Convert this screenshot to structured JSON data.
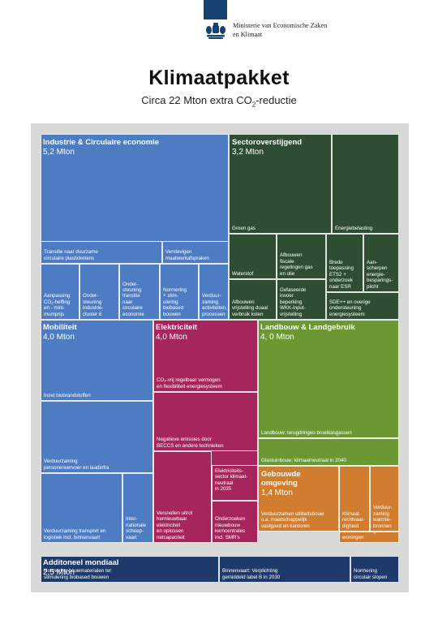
{
  "header": {
    "ministry_line1": "Ministerie van Economische Zaken",
    "ministry_line2": "en Klimaat",
    "logo_icon": "coat-of-arms-icon",
    "title": "Klimaatpakket",
    "subtitle_prefix": "Circa 22 Mton extra CO",
    "subtitle_sub": "2",
    "subtitle_suffix": "-reductie"
  },
  "colors": {
    "industrie": "#4D7CC3",
    "sectoroverstijgend": "#2E4D33",
    "mobiliteit": "#4D7CC3",
    "elektriciteit": "#A5255C",
    "landbouw": "#6B9833",
    "gebouwde_omgeving": "#D07D2F",
    "additioneel": "#1E3A6B",
    "background": "#D8D8D8"
  },
  "chart_data": {
    "type": "treemap",
    "title": "Klimaatpakket",
    "subtitle": "Circa 22 Mton extra CO2-reductie",
    "sectors": [
      {
        "id": "industrie",
        "name": "Industrie & Circulaire economie",
        "value": 5.2,
        "value_label": "5,2 Mton",
        "measures": [
          "Transitie naar duurzame circulaire plasticketens",
          "Verstevigen maatwerkafspraken",
          "Aanpassing CO₂-heffing en - mini-mumprijs",
          "Onder-steuning industrie-cluster 6",
          "Onder-steuning transitie naar circulaire economie",
          "Normering + stim-ulering biobased bouwen",
          "Verduur-zaming activiteiten, processen"
        ]
      },
      {
        "id": "sectoroverstijgend",
        "name": "Sectoroverstijgend",
        "value": 3.2,
        "value_label": "3,2 Mton",
        "measures": [
          "Groen gas",
          "Energiebelasting",
          "Waterstof",
          "Afbouwen fiscale regelingen gas en olie",
          "Brede toepassing ETS2 + onderzoek naar ESR",
          "Aan-scherpen energie-besparings-plicht",
          "Afbouwen vrijstelling duaal verbruik kolen",
          "Gefaseerde invoer beperking WKK-input-vrijstelling",
          "SDE++ en overige ondersteuning energiesysteem"
        ]
      },
      {
        "id": "mobiliteit",
        "name": "Mobiliteit",
        "value": 4.0,
        "value_label": "4,0 Mton",
        "measures": [
          "Inzet biobrandstoffen",
          "Verduurzaming personenvervoer en laadinfra",
          "Verduurzaming transport en logistiek incl. binnenvaart",
          "Inter-nationale scheep-vaart"
        ]
      },
      {
        "id": "elektriciteit",
        "name": "Elektriciteit",
        "value": 4.0,
        "value_label": "4,0 Mton",
        "measures": [
          "CO₂-vrij regelbaar vermogen en flexibiliteit energiesysteem",
          "Negatieve emissies door BECCS en andere technieken",
          "Versnellen uitrol hernieuwbaar elektriciteit en oplossen netcapaciteit",
          "Elektriciteits-sector klimaat-neutraal in 2035",
          "Onderzoeken nieuwbouw kerncentrales incl. SMR's"
        ]
      },
      {
        "id": "landbouw",
        "name": "Landbouw & Landgebruik",
        "value": 4.0,
        "value_label": "4, 0 Mton",
        "measures": [
          "Landbouw: terugdringen broeikasgassen",
          "Glastuinbouw: klimaatneutraal in 2040"
        ]
      },
      {
        "id": "gebouwde_omgeving",
        "name": "Gebouwde omgeving",
        "value": 1.4,
        "value_label": "1,4 Mton",
        "measures": [
          "Verduurzamen utiliteitsbouw o.a. maatschappelijk vastgoed en kantoren",
          "Klimaat-rechtvaar-digheid",
          "Verduur-zaming warmte-bronnen",
          "Verduurzaming woningen"
        ]
      },
      {
        "id": "additioneel",
        "name": "Additoneel mondiaal",
        "value": 2.5,
        "value_label": "2,5 Mton",
        "measures": [
          "Normering bouwmaterialen ter stimulering biobased bouwen",
          "Binnenvaart: Verplichting gemiddeld label B in 2030",
          "Normering circulair slopen"
        ]
      }
    ]
  }
}
